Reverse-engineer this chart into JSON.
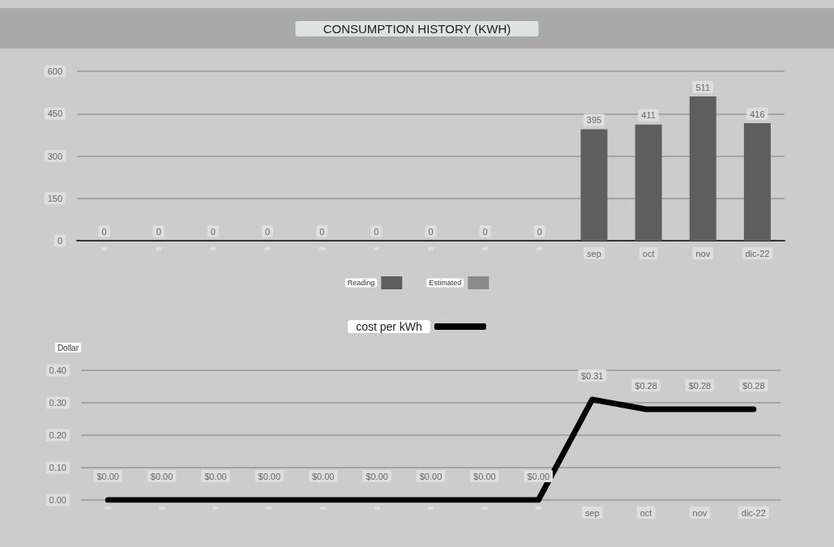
{
  "chart_data": [
    {
      "type": "bar",
      "title": "CONSUMPTION HISTORY (KWH)",
      "categories": [
        null,
        null,
        null,
        null,
        null,
        null,
        null,
        null,
        null,
        "sep",
        "oct",
        "nov",
        "dic-22"
      ],
      "series": [
        {
          "name": "Reading",
          "color": "#5e5e5e",
          "values": [
            0,
            0,
            0,
            0,
            0,
            0,
            0,
            0,
            0,
            395,
            411,
            511,
            416
          ]
        },
        {
          "name": "Estimated",
          "color": "#8a8a8a",
          "values": [
            null,
            null,
            null,
            null,
            null,
            null,
            null,
            null,
            null,
            null,
            null,
            null,
            null
          ]
        }
      ],
      "ylim": [
        0,
        600
      ],
      "yticks": [
        0,
        150,
        300,
        450,
        600
      ],
      "grid": "y",
      "legend": "bottom",
      "data_labels": true
    },
    {
      "type": "line",
      "ylabel": "Dollar",
      "categories": [
        null,
        null,
        null,
        null,
        null,
        null,
        null,
        null,
        null,
        "sep",
        "oct",
        "nov",
        "dic-22"
      ],
      "series": [
        {
          "name": "cost per kWh",
          "color": "#000000",
          "values": [
            0,
            0,
            0,
            0,
            0,
            0,
            0,
            0,
            0,
            0.31,
            0.28,
            0.28,
            0.28
          ],
          "value_labels": [
            "$0.00",
            "$0.00",
            "$0.00",
            "$0.00",
            "$0.00",
            "$0.00",
            "$0.00",
            "$0.00",
            "$0.00",
            "$0.31",
            "$0.28",
            "$0.28",
            "$0.28"
          ]
        }
      ],
      "ylim": [
        0,
        0.4
      ],
      "yticks": [
        {
          "value": 0,
          "label": "0.00"
        },
        {
          "value": 0.1,
          "label": "0.10"
        },
        {
          "value": 0.2,
          "label": "0.20"
        },
        {
          "value": 0.3,
          "label": "0.30"
        },
        {
          "value": 0.4,
          "label": "0.40"
        }
      ],
      "grid": "y",
      "legend": "top",
      "marker": "none",
      "line_style": "solid"
    }
  ]
}
